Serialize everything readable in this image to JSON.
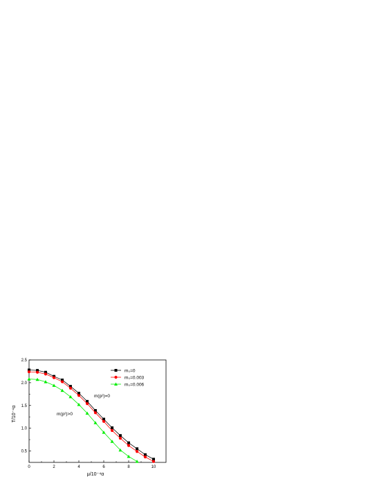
{
  "chart_data": {
    "type": "line",
    "xlabel": "μ/10⁻⁴α",
    "ylabel": "T/10⁻⁴α",
    "xlim": [
      0,
      11
    ],
    "ylim": [
      0.25,
      2.5
    ],
    "xticks": [
      "0",
      "2",
      "4",
      "6",
      "8",
      "10"
    ],
    "yticks": [
      "0.5",
      "1.0",
      "1.5",
      "2.0",
      "2.5"
    ],
    "grid": false,
    "legend_position": "top-right",
    "series": [
      {
        "name": "m₀=0",
        "color": "#000000",
        "marker": "square",
        "points": [
          [
            0,
            2.28
          ],
          [
            0.67,
            2.27
          ],
          [
            1.33,
            2.23
          ],
          [
            2,
            2.14
          ],
          [
            2.67,
            2.06
          ],
          [
            3.33,
            1.92
          ],
          [
            4,
            1.77
          ],
          [
            4.67,
            1.59
          ],
          [
            5.33,
            1.39
          ],
          [
            6,
            1.2
          ],
          [
            6.67,
            1.01
          ],
          [
            7.33,
            0.84
          ],
          [
            8,
            0.68
          ],
          [
            8.67,
            0.55
          ],
          [
            9.33,
            0.42
          ],
          [
            10,
            0.32
          ]
        ]
      },
      {
        "name": "m₀=0.003",
        "color": "#ff0000",
        "marker": "circle",
        "points": [
          [
            0,
            2.24
          ],
          [
            0.67,
            2.23
          ],
          [
            1.33,
            2.19
          ],
          [
            2,
            2.11
          ],
          [
            2.67,
            2.02
          ],
          [
            3.33,
            1.88
          ],
          [
            4,
            1.72
          ],
          [
            4.67,
            1.54
          ],
          [
            5.33,
            1.34
          ],
          [
            6,
            1.15
          ],
          [
            6.67,
            0.95
          ],
          [
            7.33,
            0.78
          ],
          [
            8,
            0.62
          ],
          [
            8.67,
            0.49
          ],
          [
            9.33,
            0.37
          ],
          [
            10,
            0.27
          ]
        ]
      },
      {
        "name": "m₀=0.006",
        "color": "#00ee00",
        "marker": "triangle",
        "points": [
          [
            0,
            2.08
          ],
          [
            0.67,
            2.07
          ],
          [
            1.33,
            2.02
          ],
          [
            2,
            1.94
          ],
          [
            2.67,
            1.83
          ],
          [
            3.33,
            1.69
          ],
          [
            4,
            1.52
          ],
          [
            4.67,
            1.33
          ],
          [
            5.33,
            1.12
          ],
          [
            6,
            0.91
          ],
          [
            6.67,
            0.71
          ],
          [
            7.33,
            0.52
          ],
          [
            8,
            0.38
          ],
          [
            8.67,
            0.27
          ]
        ]
      }
    ],
    "annotations": [
      "m(p²)=0",
      "m(p²)>0"
    ]
  }
}
